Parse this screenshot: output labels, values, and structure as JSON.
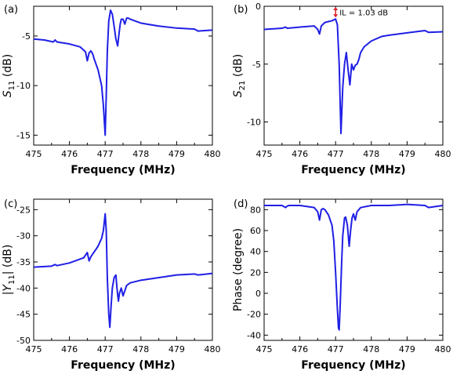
{
  "chart_data": [
    {
      "panel": "(a)",
      "type": "line",
      "xlabel": "Frequency (MHz)",
      "ylabel": {
        "prefix": "S",
        "sub": "11",
        "suffix": " (dB)"
      },
      "xlim": [
        475,
        480
      ],
      "ylim": [
        -16,
        -2
      ],
      "xticks": [
        475,
        476,
        477,
        478,
        479,
        480
      ],
      "yticks": [
        -15,
        -10,
        -5
      ],
      "x": [
        475.0,
        475.3,
        475.55,
        475.6,
        475.65,
        476.0,
        476.3,
        476.45,
        476.5,
        476.55,
        476.6,
        476.65,
        476.7,
        476.8,
        476.9,
        476.95,
        477.0,
        477.03,
        477.06,
        477.1,
        477.15,
        477.2,
        477.25,
        477.3,
        477.35,
        477.38,
        477.42,
        477.45,
        477.5,
        477.55,
        477.6,
        477.65,
        477.7,
        478.0,
        478.5,
        479.0,
        479.5,
        479.6,
        480.0
      ],
      "y": [
        -5.3,
        -5.4,
        -5.6,
        -5.4,
        -5.6,
        -5.8,
        -6.1,
        -6.6,
        -7.5,
        -6.7,
        -6.5,
        -6.8,
        -7.4,
        -8.4,
        -10.0,
        -12.0,
        -15.0,
        -11.0,
        -6.5,
        -3.5,
        -2.4,
        -2.8,
        -4.0,
        -5.3,
        -6.0,
        -5.0,
        -3.8,
        -3.3,
        -3.3,
        -3.8,
        -3.2,
        -3.2,
        -3.3,
        -3.7,
        -4.0,
        -4.2,
        -4.3,
        -4.5,
        -4.4
      ]
    },
    {
      "panel": "(b)",
      "type": "line",
      "xlabel": "Frequency (MHz)",
      "ylabel": {
        "prefix": "S",
        "sub": "21",
        "suffix": " (dB)"
      },
      "xlim": [
        475,
        480
      ],
      "ylim": [
        -12,
        0
      ],
      "xticks": [
        475,
        476,
        477,
        478,
        479,
        480
      ],
      "yticks": [
        0,
        -5,
        -10
      ],
      "annotation": {
        "text": "IL = 1.03 dB",
        "value": -1.03,
        "at_x": 477.0
      },
      "x": [
        475.0,
        475.5,
        475.6,
        475.65,
        476.0,
        476.4,
        476.5,
        476.55,
        476.6,
        476.7,
        476.9,
        477.0,
        477.05,
        477.1,
        477.15,
        477.2,
        477.25,
        477.3,
        477.35,
        477.4,
        477.45,
        477.5,
        477.55,
        477.6,
        477.65,
        477.7,
        477.8,
        478.0,
        478.3,
        478.5,
        479.0,
        479.5,
        479.6,
        480.0
      ],
      "y": [
        -2.0,
        -1.9,
        -1.8,
        -1.9,
        -1.8,
        -1.7,
        -2.0,
        -2.4,
        -1.7,
        -1.4,
        -1.25,
        -1.1,
        -1.6,
        -5.0,
        -11.0,
        -7.0,
        -5.0,
        -4.0,
        -5.5,
        -6.8,
        -5.0,
        -5.5,
        -5.1,
        -5.0,
        -4.6,
        -4.0,
        -3.5,
        -3.0,
        -2.6,
        -2.5,
        -2.3,
        -2.1,
        -2.25,
        -2.2
      ]
    },
    {
      "panel": "(c)",
      "type": "line",
      "xlabel": "Frequency (MHz)",
      "ylabel": {
        "prefix": "|Y",
        "sub": "11",
        "suffix": "| (dB)"
      },
      "xlim": [
        475,
        480
      ],
      "ylim": [
        -50,
        -23
      ],
      "xticks": [
        475,
        476,
        477,
        478,
        479,
        480
      ],
      "yticks": [
        -25,
        -30,
        -35,
        -40,
        -45,
        -50
      ],
      "x": [
        475.0,
        475.5,
        475.6,
        475.65,
        476.0,
        476.4,
        476.5,
        476.55,
        476.6,
        476.7,
        476.8,
        476.9,
        476.95,
        477.0,
        477.03,
        477.06,
        477.1,
        477.13,
        477.17,
        477.2,
        477.25,
        477.3,
        477.33,
        477.37,
        477.4,
        477.45,
        477.5,
        477.55,
        477.6,
        477.7,
        478.0,
        478.5,
        479.0,
        479.5,
        479.6,
        480.0
      ],
      "y": [
        -36.0,
        -35.8,
        -35.5,
        -35.7,
        -35.2,
        -34.2,
        -33.2,
        -34.8,
        -34.0,
        -33.0,
        -32.0,
        -30.5,
        -29.0,
        -25.8,
        -29.0,
        -38.0,
        -45.0,
        -47.5,
        -43.0,
        -40.0,
        -38.0,
        -37.5,
        -40.0,
        -42.5,
        -41.0,
        -40.0,
        -41.5,
        -40.5,
        -39.5,
        -39.0,
        -38.5,
        -38.0,
        -37.5,
        -37.3,
        -37.5,
        -37.2
      ]
    },
    {
      "panel": "(d)",
      "type": "line",
      "xlabel": "Frequency (MHz)",
      "ylabel": {
        "prefix": "Phase (degree)",
        "sub": "",
        "suffix": ""
      },
      "xlim": [
        475,
        480
      ],
      "ylim": [
        -45,
        90
      ],
      "xticks": [
        475,
        476,
        477,
        478,
        479,
        480
      ],
      "yticks": [
        80,
        60,
        40,
        20,
        0,
        -20,
        -40
      ],
      "x": [
        475.0,
        475.5,
        475.6,
        475.65,
        475.7,
        476.0,
        476.4,
        476.5,
        476.55,
        476.6,
        476.65,
        476.7,
        476.8,
        476.9,
        476.95,
        477.0,
        477.05,
        477.08,
        477.1,
        477.13,
        477.17,
        477.2,
        477.25,
        477.28,
        477.33,
        477.38,
        477.42,
        477.46,
        477.5,
        477.55,
        477.6,
        477.7,
        478.0,
        478.5,
        479.0,
        479.5,
        479.6,
        480.0
      ],
      "y": [
        84.0,
        84.0,
        82.0,
        83.5,
        84.0,
        84.0,
        82.0,
        78.0,
        70.0,
        80.0,
        81.0,
        80.0,
        75.0,
        65.0,
        50.0,
        20.0,
        -15.0,
        -33.0,
        -35.0,
        -10.0,
        30.0,
        55.0,
        72.0,
        73.0,
        65.0,
        45.0,
        60.0,
        72.0,
        76.0,
        70.0,
        78.0,
        82.0,
        84.0,
        84.0,
        85.0,
        84.0,
        82.0,
        84.0
      ]
    }
  ]
}
